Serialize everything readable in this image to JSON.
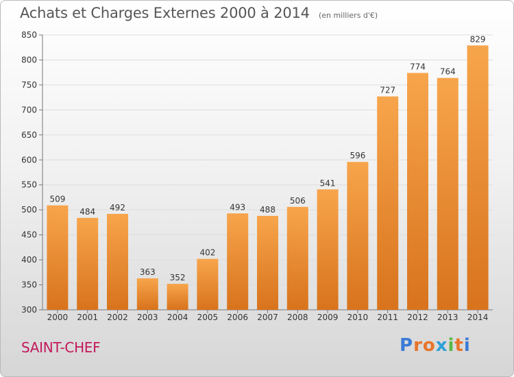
{
  "header": {
    "title": "Achats et Charges Externes 2000 à 2014",
    "unit": "(en milliers d'€)"
  },
  "footer": {
    "commune": "SAINT-CHEF",
    "logo": [
      "P",
      "r",
      "o",
      "x",
      "i",
      "t",
      "i"
    ]
  },
  "colors": {
    "bar_light": "#f7a54c",
    "bar_dark": "#d8731c",
    "commune_text": "#c2185b"
  },
  "chart_data": {
    "type": "bar",
    "title": "Achats et Charges Externes 2000 à 2014",
    "subtitle": "(en milliers d'€)",
    "categories": [
      "2000",
      "2001",
      "2002",
      "2003",
      "2004",
      "2005",
      "2006",
      "2007",
      "2008",
      "2009",
      "2010",
      "2011",
      "2012",
      "2013",
      "2014"
    ],
    "values": [
      509,
      484,
      492,
      363,
      352,
      402,
      493,
      488,
      506,
      541,
      596,
      727,
      774,
      764,
      829
    ],
    "ylim": [
      300,
      850
    ],
    "yticks": [
      300,
      350,
      400,
      450,
      500,
      550,
      600,
      650,
      700,
      750,
      800,
      850
    ],
    "grid": true,
    "xlabel": "",
    "ylabel": ""
  }
}
